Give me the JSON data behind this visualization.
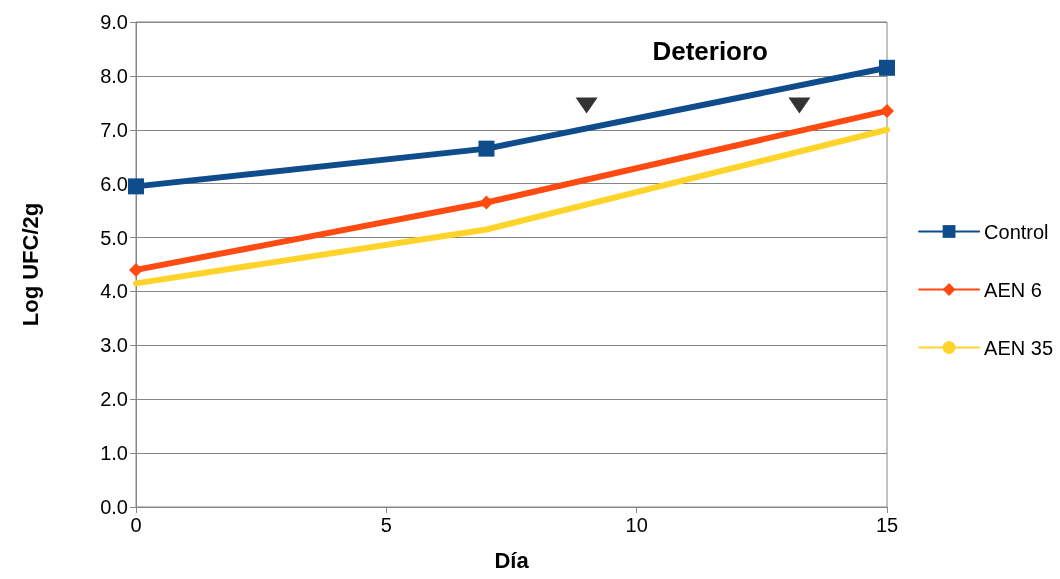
{
  "chart_data": {
    "type": "line",
    "xlabel": "Día",
    "ylabel": "Log UFC/2g",
    "annotations": [
      "Deterioro"
    ],
    "x": [
      0,
      7,
      15
    ],
    "series": [
      {
        "name": "Control",
        "color": "#0f4c8c",
        "values": [
          5.95,
          6.65,
          8.15
        ],
        "marker": "square"
      },
      {
        "name": "AEN 6",
        "color": "#ff4a12",
        "values": [
          4.4,
          5.65,
          7.35
        ],
        "marker": "diamond"
      },
      {
        "name": "AEN 35",
        "color": "#ffd42a",
        "values": [
          4.15,
          5.15,
          7.0
        ],
        "marker": "none"
      },
      {
        "type": "scatter",
        "color": "#000000",
        "x": [
          9,
          13.25
        ],
        "values": [
          7.45,
          7.45
        ],
        "marker": "triangle"
      }
    ],
    "xlim": [
      0,
      15
    ],
    "xticks": [
      0,
      5,
      10,
      15
    ],
    "ylim": [
      0,
      9
    ],
    "yticks": [
      {
        "value": 0,
        "label": "0.0"
      },
      {
        "value": 1,
        "label": "1.0"
      },
      {
        "value": 2,
        "label": "2.0"
      },
      {
        "value": 3,
        "label": "3.0"
      },
      {
        "value": 4,
        "label": "4.0"
      },
      {
        "value": 5,
        "label": "5.0"
      },
      {
        "value": 6,
        "label": "6.0"
      },
      {
        "value": 7,
        "label": "7.0"
      },
      {
        "value": 8,
        "label": "8.0"
      },
      {
        "value": 9,
        "label": "9.0"
      }
    ],
    "grid": "y",
    "legend": "right",
    "line_style": "solid"
  }
}
